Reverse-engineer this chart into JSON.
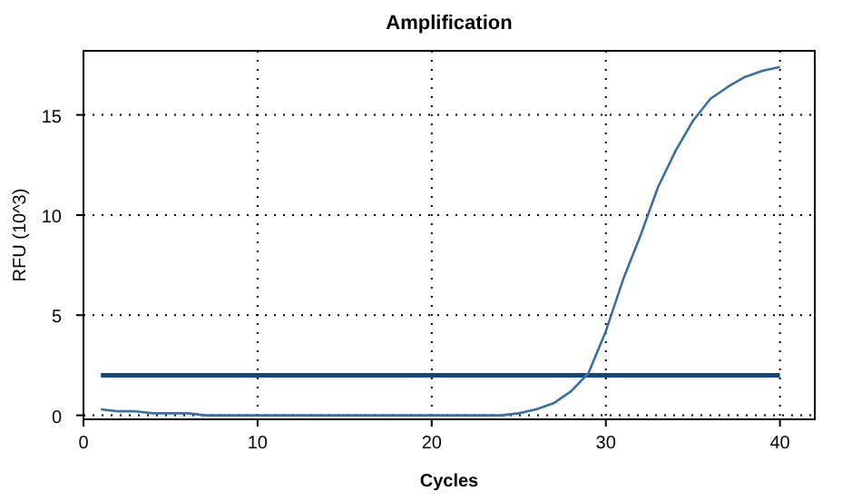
{
  "chart_data": {
    "type": "line",
    "title": "Amplification",
    "xlabel": "Cycles",
    "ylabel": "RFU (10^3)",
    "x": [
      1,
      2,
      3,
      4,
      5,
      6,
      7,
      8,
      9,
      10,
      11,
      12,
      13,
      14,
      15,
      16,
      17,
      18,
      19,
      20,
      21,
      22,
      23,
      24,
      25,
      26,
      27,
      28,
      29,
      30,
      31,
      32,
      33,
      34,
      35,
      36,
      37,
      38,
      39,
      40
    ],
    "series": [
      {
        "color": "#3a6ea5",
        "values": [
          0.3,
          0.2,
          0.2,
          0.1,
          0.1,
          0.1,
          0,
          0,
          0,
          0,
          0,
          0,
          0,
          0,
          0,
          0,
          0,
          0,
          0,
          0,
          0,
          0,
          0,
          0,
          0.1,
          0.3,
          0.6,
          1.2,
          2.1,
          4.2,
          6.8,
          9.0,
          11.4,
          13.2,
          14.7,
          15.8,
          16.4,
          16.9,
          17.2,
          17.4
        ]
      }
    ],
    "ref_lines": [
      {
        "axis": "y",
        "value": 2.0,
        "color": "#0a4a85"
      }
    ],
    "xlim": [
      0,
      42
    ],
    "xticks": [
      0,
      10,
      20,
      30,
      40
    ],
    "ylim": [
      -0.2,
      18.2
    ],
    "yticks": [
      0,
      5,
      10,
      15
    ],
    "grid": true,
    "marker": "none",
    "line_style": "solid"
  }
}
